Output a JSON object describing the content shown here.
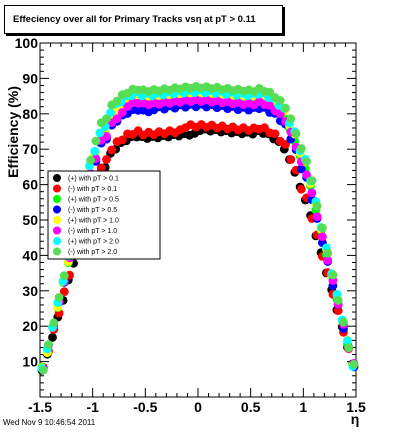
{
  "header": {
    "title": "Effeciency over all for Primary Tracks vsη at pT > 0.11"
  },
  "footer": {
    "timestamp": "Wed Nov  9 10:46:54 2011"
  },
  "chart_data": {
    "type": "scatter",
    "title": "Effeciency over all for Primary Tracks vsη at pT > 0.11",
    "xlabel": "η",
    "ylabel": "Efficiency (%)",
    "xlim": [
      -1.5,
      1.5
    ],
    "ylim": [
      0,
      100
    ],
    "x_ticks": [
      "-1.5",
      "-1",
      "-0.5",
      "0",
      "0.5",
      "1",
      "1.5"
    ],
    "y_ticks": [
      "10",
      "20",
      "30",
      "40",
      "50",
      "60",
      "70",
      "80",
      "90",
      "100"
    ],
    "grid": false,
    "legend_position": "left-middle",
    "series": [
      {
        "name": "(+) with pT > 0.1",
        "color": "#000000",
        "plateau": 75
      },
      {
        "name": "(-) with pT > 0.1",
        "color": "#ff0000",
        "plateau": 76
      },
      {
        "name": "(+) with pT > 0.5",
        "color": "#00ff00",
        "plateau": 84
      },
      {
        "name": "(-) with pT > 0.5",
        "color": "#0000ff",
        "plateau": 82
      },
      {
        "name": "(+) with pT > 1.0",
        "color": "#ffff00",
        "plateau": 85
      },
      {
        "name": "(-) with pT > 1.0",
        "color": "#ff00ff",
        "plateau": 83
      },
      {
        "name": "(+) with pT > 2.0",
        "color": "#00ffff",
        "plateau": 86
      },
      {
        "name": "(-) with pT > 2.0",
        "color": "#55dd55",
        "plateau": 87
      }
    ]
  }
}
